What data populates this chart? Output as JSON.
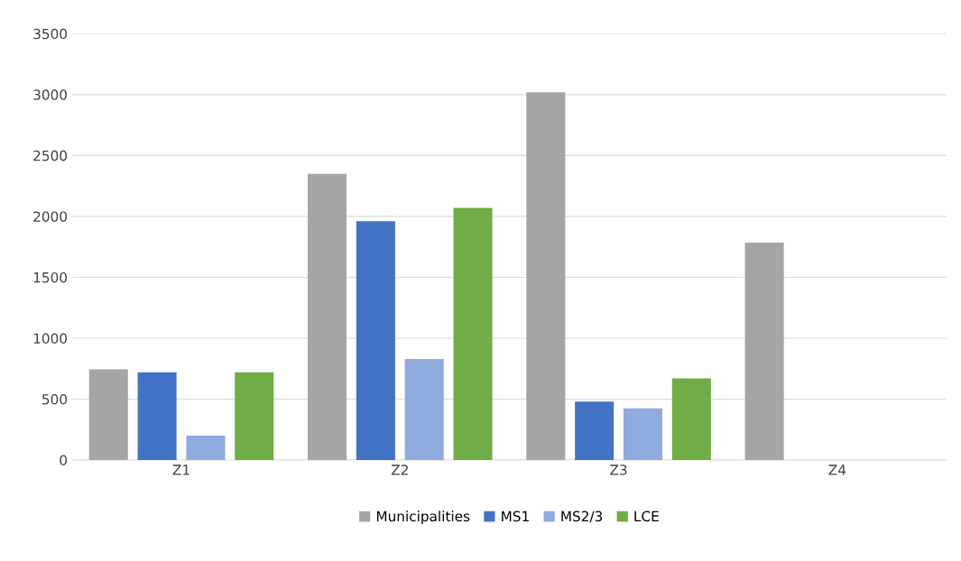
{
  "chart_data": {
    "type": "bar",
    "categories": [
      "Z1",
      "Z2",
      "Z3",
      "Z4"
    ],
    "series": [
      {
        "name": "Municipalities",
        "color": "#a5a5a5",
        "values": [
          745,
          2350,
          3020,
          1785
        ]
      },
      {
        "name": "MS1",
        "color": "#4472c4",
        "values": [
          720,
          1960,
          480,
          null
        ]
      },
      {
        "name": "MS2/3",
        "color": "#8faadc",
        "values": [
          200,
          830,
          425,
          null
        ]
      },
      {
        "name": "LCE",
        "color": "#70ad47",
        "values": [
          720,
          2070,
          670,
          null
        ]
      }
    ],
    "ylim": [
      0,
      3500
    ],
    "yticks": [
      0,
      500,
      1000,
      1500,
      2000,
      2500,
      3000,
      3500
    ],
    "grid": "y",
    "legend": "bottom"
  }
}
